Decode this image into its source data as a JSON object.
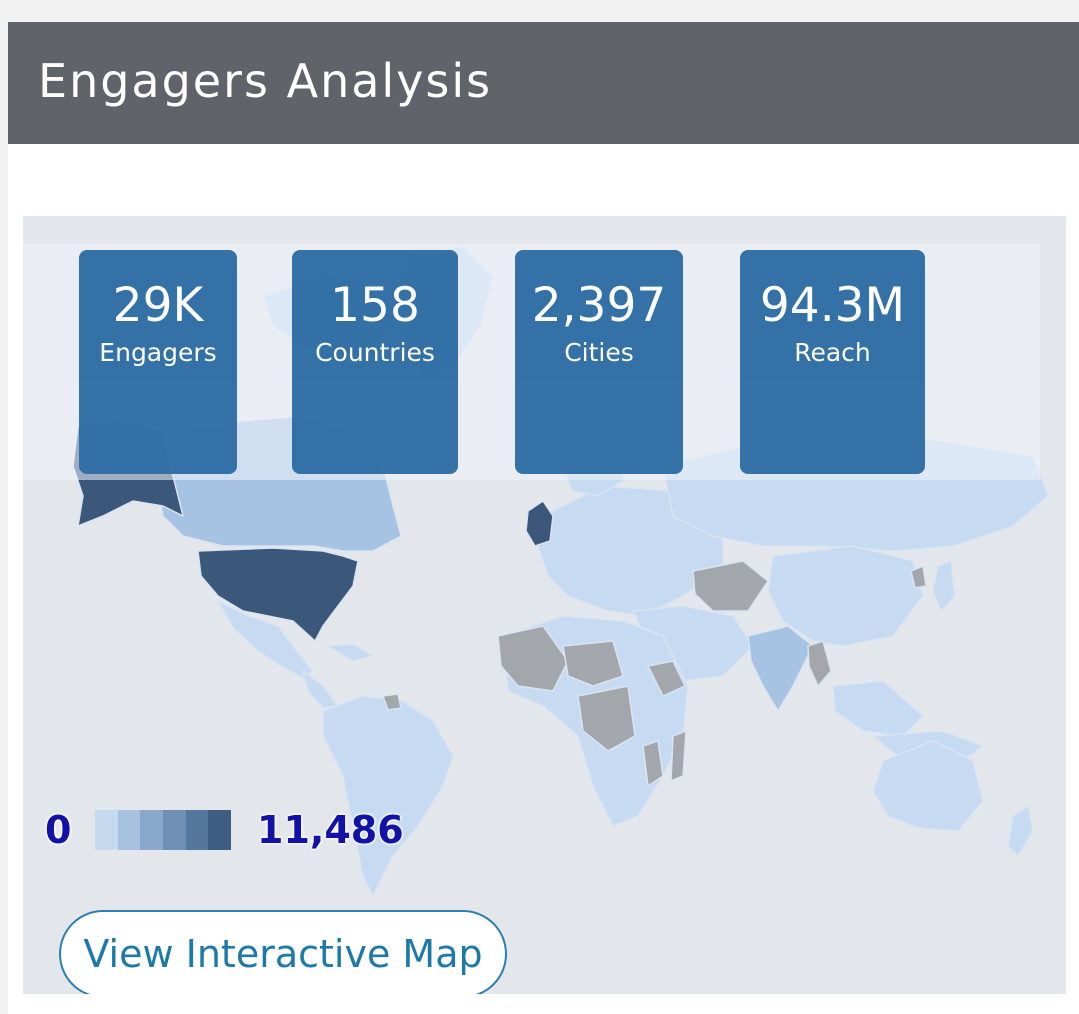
{
  "header": {
    "title": "Engagers Analysis"
  },
  "stats": [
    {
      "value": "29K",
      "label": "Engagers"
    },
    {
      "value": "158",
      "label": "Countries"
    },
    {
      "value": "2,397",
      "label": "Cities"
    },
    {
      "value": "94.3M",
      "label": "Reach"
    }
  ],
  "legend": {
    "min": "0",
    "max": "11,486",
    "colors": [
      "#c5d9ef",
      "#a7c1de",
      "#8aa8cb",
      "#6f8fb5",
      "#56779d",
      "#3f5d83"
    ]
  },
  "map": {
    "colors": {
      "ocean": "#e3e7ec",
      "low": "#c6daf1",
      "mid": "#a7c3e4",
      "high": "#3b5779",
      "no_data": "#a3a6ab",
      "border": "#d9e4f2"
    }
  },
  "actions": {
    "view_map": "View Interactive Map"
  }
}
